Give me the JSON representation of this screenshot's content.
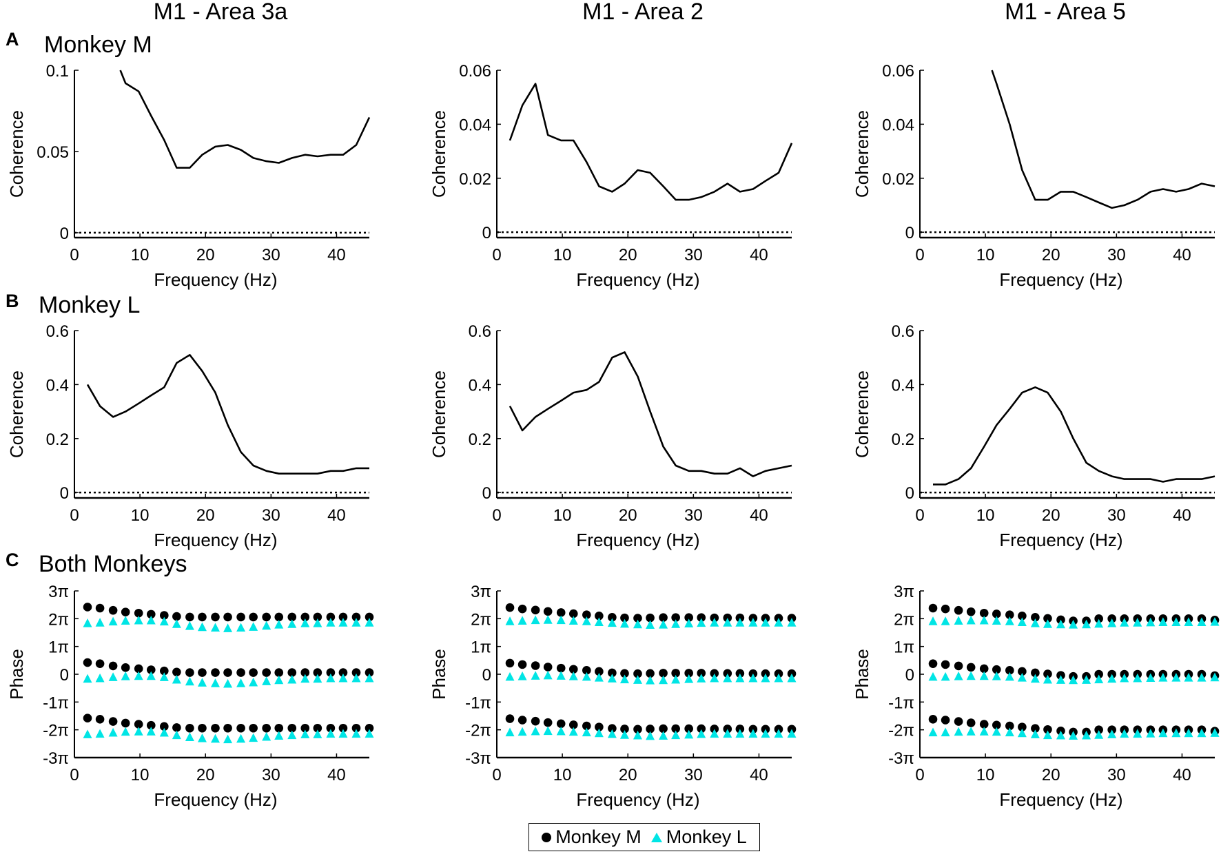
{
  "colors": {
    "line": "#000000",
    "monkey_m": "#000000",
    "monkey_l": "#00e5e5"
  },
  "column_titles": [
    "M1 - Area 3a",
    "M1 - Area 2",
    "M1 - Area 5"
  ],
  "panels": [
    {
      "letter": "A",
      "label": "Monkey M"
    },
    {
      "letter": "B",
      "label": "Monkey L"
    },
    {
      "letter": "C",
      "label": "Both Monkeys"
    }
  ],
  "legend": {
    "m": "Monkey M",
    "l": "Monkey L"
  },
  "chart_data": [
    {
      "id": "a1",
      "type": "line",
      "row": 0,
      "col": 0,
      "xlabel": "Frequency (Hz)",
      "ylabel": "Coherence",
      "xlim": [
        0,
        45
      ],
      "ylim": [
        -0.003,
        0.1
      ],
      "yticks": [
        0,
        0.05,
        0.1
      ],
      "ytick_labels": [
        "0",
        "0.05",
        "0.1"
      ],
      "xticks": [
        0,
        10,
        20,
        30,
        40
      ],
      "baseline": 0,
      "x": [
        7,
        7.8,
        9.8,
        11.7,
        13.7,
        15.6,
        17.6,
        19.5,
        21.5,
        23.4,
        25.4,
        27.3,
        29.3,
        31.2,
        33.2,
        35.2,
        37.1,
        39.1,
        41,
        43,
        45
      ],
      "y": [
        0.1,
        0.092,
        0.087,
        0.072,
        0.057,
        0.04,
        0.04,
        0.048,
        0.053,
        0.054,
        0.051,
        0.046,
        0.044,
        0.043,
        0.046,
        0.048,
        0.047,
        0.048,
        0.048,
        0.054,
        0.071
      ]
    },
    {
      "id": "a2",
      "type": "line",
      "row": 0,
      "col": 1,
      "xlabel": "Frequency (Hz)",
      "ylabel": "Coherence",
      "xlim": [
        0,
        45
      ],
      "ylim": [
        -0.002,
        0.06
      ],
      "yticks": [
        0,
        0.02,
        0.04,
        0.06
      ],
      "ytick_labels": [
        "0",
        "0.02",
        "0.04",
        "0.06"
      ],
      "xticks": [
        0,
        10,
        20,
        30,
        40
      ],
      "baseline": 0,
      "x": [
        2,
        3.9,
        5.9,
        7.8,
        9.8,
        11.7,
        13.7,
        15.6,
        17.6,
        19.5,
        21.5,
        23.4,
        25.4,
        27.3,
        29.3,
        31.2,
        33.2,
        35.2,
        37.1,
        39.1,
        41,
        43,
        45
      ],
      "y": [
        0.034,
        0.047,
        0.055,
        0.036,
        0.034,
        0.034,
        0.026,
        0.017,
        0.015,
        0.018,
        0.023,
        0.022,
        0.017,
        0.012,
        0.012,
        0.013,
        0.015,
        0.018,
        0.015,
        0.016,
        0.019,
        0.022,
        0.033
      ]
    },
    {
      "id": "a3",
      "type": "line",
      "row": 0,
      "col": 2,
      "xlabel": "Frequency (Hz)",
      "ylabel": "Coherence",
      "xlim": [
        0,
        45
      ],
      "ylim": [
        -0.002,
        0.06
      ],
      "yticks": [
        0,
        0.02,
        0.04,
        0.06
      ],
      "ytick_labels": [
        "0",
        "0.02",
        "0.04",
        "0.06"
      ],
      "xticks": [
        0,
        10,
        20,
        30,
        40
      ],
      "baseline": 0,
      "x": [
        11,
        11.7,
        13.7,
        15.6,
        17.6,
        19.5,
        21.5,
        23.4,
        25.4,
        27.3,
        29.3,
        31.2,
        33.2,
        35.2,
        37.1,
        39.1,
        41,
        43,
        45
      ],
      "y": [
        0.06,
        0.055,
        0.04,
        0.023,
        0.012,
        0.012,
        0.015,
        0.015,
        0.013,
        0.011,
        0.009,
        0.01,
        0.012,
        0.015,
        0.016,
        0.015,
        0.016,
        0.018,
        0.017
      ]
    },
    {
      "id": "b1",
      "type": "line",
      "row": 1,
      "col": 0,
      "xlabel": "Frequency (Hz)",
      "ylabel": "Coherence",
      "xlim": [
        0,
        45
      ],
      "ylim": [
        -0.02,
        0.6
      ],
      "yticks": [
        0,
        0.2,
        0.4,
        0.6
      ],
      "ytick_labels": [
        "0",
        "0.2",
        "0.4",
        "0.6"
      ],
      "xticks": [
        0,
        10,
        20,
        30,
        40
      ],
      "baseline": 0,
      "x": [
        2,
        3.9,
        5.9,
        7.8,
        9.8,
        11.7,
        13.7,
        15.6,
        17.6,
        19.5,
        21.5,
        23.4,
        25.4,
        27.3,
        29.3,
        31.2,
        33.2,
        35.2,
        37.1,
        39.1,
        41,
        43,
        45
      ],
      "y": [
        0.4,
        0.32,
        0.28,
        0.3,
        0.33,
        0.36,
        0.39,
        0.48,
        0.51,
        0.45,
        0.37,
        0.25,
        0.15,
        0.1,
        0.08,
        0.07,
        0.07,
        0.07,
        0.07,
        0.08,
        0.08,
        0.09,
        0.09
      ]
    },
    {
      "id": "b2",
      "type": "line",
      "row": 1,
      "col": 1,
      "xlabel": "Frequency (Hz)",
      "ylabel": "Coherence",
      "xlim": [
        0,
        45
      ],
      "ylim": [
        -0.02,
        0.6
      ],
      "yticks": [
        0,
        0.2,
        0.4,
        0.6
      ],
      "ytick_labels": [
        "0",
        "0.2",
        "0.4",
        "0.6"
      ],
      "xticks": [
        0,
        10,
        20,
        30,
        40
      ],
      "baseline": 0,
      "x": [
        2,
        3.9,
        5.9,
        7.8,
        9.8,
        11.7,
        13.7,
        15.6,
        17.6,
        19.5,
        21.5,
        23.4,
        25.4,
        27.3,
        29.3,
        31.2,
        33.2,
        35.2,
        37.1,
        39.1,
        41,
        43,
        45
      ],
      "y": [
        0.32,
        0.23,
        0.28,
        0.31,
        0.34,
        0.37,
        0.38,
        0.41,
        0.5,
        0.52,
        0.43,
        0.3,
        0.17,
        0.1,
        0.08,
        0.08,
        0.07,
        0.07,
        0.09,
        0.06,
        0.08,
        0.09,
        0.1
      ]
    },
    {
      "id": "b3",
      "type": "line",
      "row": 1,
      "col": 2,
      "xlabel": "Frequency (Hz)",
      "ylabel": "Coherence",
      "xlim": [
        0,
        45
      ],
      "ylim": [
        -0.02,
        0.6
      ],
      "yticks": [
        0,
        0.2,
        0.4,
        0.6
      ],
      "ytick_labels": [
        "0",
        "0.2",
        "0.4",
        "0.6"
      ],
      "xticks": [
        0,
        10,
        20,
        30,
        40
      ],
      "baseline": 0,
      "x": [
        2,
        3.9,
        5.9,
        7.8,
        9.8,
        11.7,
        13.7,
        15.6,
        17.6,
        19.5,
        21.5,
        23.4,
        25.4,
        27.3,
        29.3,
        31.2,
        33.2,
        35.2,
        37.1,
        39.1,
        41,
        43,
        45
      ],
      "y": [
        0.03,
        0.03,
        0.05,
        0.09,
        0.17,
        0.25,
        0.31,
        0.37,
        0.39,
        0.37,
        0.3,
        0.2,
        0.11,
        0.08,
        0.06,
        0.05,
        0.05,
        0.05,
        0.04,
        0.05,
        0.05,
        0.05,
        0.06
      ]
    },
    {
      "id": "c1",
      "type": "scatter",
      "row": 2,
      "col": 0,
      "xlabel": "Frequency (Hz)",
      "ylabel": "Phase",
      "xlim": [
        0,
        45
      ],
      "ylim": [
        -3,
        3
      ],
      "yticks": [
        3,
        2,
        1,
        0,
        -1,
        -2,
        -3
      ],
      "ytick_labels": [
        "3π",
        "2π",
        "1π",
        "0",
        "-1π",
        "-2π",
        "-3π"
      ],
      "xticks": [
        0,
        10,
        20,
        30,
        40
      ],
      "x": [
        2,
        3.9,
        5.9,
        7.8,
        9.8,
        11.7,
        13.7,
        15.6,
        17.6,
        19.5,
        21.5,
        23.4,
        25.4,
        27.3,
        29.3,
        31.2,
        33.2,
        35.2,
        37.1,
        39.1,
        41,
        43,
        45
      ],
      "series": [
        {
          "name": "Monkey M",
          "marker": "circle",
          "wrap": [
            -2,
            0,
            2
          ],
          "values": [
            0.42,
            0.38,
            0.3,
            0.24,
            0.2,
            0.16,
            0.12,
            0.08,
            0.06,
            0.06,
            0.06,
            0.06,
            0.06,
            0.06,
            0.06,
            0.06,
            0.06,
            0.06,
            0.06,
            0.06,
            0.06,
            0.06,
            0.06
          ]
        },
        {
          "name": "Monkey L",
          "marker": "triangle",
          "wrap": [
            -2,
            0,
            2
          ],
          "values": [
            -0.17,
            -0.15,
            -0.11,
            -0.08,
            -0.07,
            -0.07,
            -0.11,
            -0.2,
            -0.27,
            -0.31,
            -0.33,
            -0.35,
            -0.33,
            -0.3,
            -0.26,
            -0.22,
            -0.2,
            -0.17,
            -0.17,
            -0.15,
            -0.15,
            -0.15,
            -0.15
          ]
        }
      ]
    },
    {
      "id": "c2",
      "type": "scatter",
      "row": 2,
      "col": 1,
      "xlabel": "Frequency (Hz)",
      "ylabel": "Phase",
      "xlim": [
        0,
        45
      ],
      "ylim": [
        -3,
        3
      ],
      "yticks": [
        3,
        2,
        1,
        0,
        -1,
        -2,
        -3
      ],
      "ytick_labels": [
        "3π",
        "2π",
        "1π",
        "0",
        "-1π",
        "-2π",
        "-3π"
      ],
      "xticks": [
        0,
        10,
        20,
        30,
        40
      ],
      "x": [
        2,
        3.9,
        5.9,
        7.8,
        9.8,
        11.7,
        13.7,
        15.6,
        17.6,
        19.5,
        21.5,
        23.4,
        25.4,
        27.3,
        29.3,
        31.2,
        33.2,
        35.2,
        37.1,
        39.1,
        41,
        43,
        45
      ],
      "series": [
        {
          "name": "Monkey M",
          "marker": "circle",
          "wrap": [
            -2,
            0,
            2
          ],
          "values": [
            0.4,
            0.35,
            0.31,
            0.26,
            0.22,
            0.18,
            0.14,
            0.1,
            0.05,
            0.03,
            0.02,
            0.03,
            0.04,
            0.04,
            0.04,
            0.04,
            0.03,
            0.03,
            0.03,
            0.02,
            0.02,
            0.02,
            0.02
          ]
        },
        {
          "name": "Monkey L",
          "marker": "triangle",
          "wrap": [
            -2,
            0,
            2
          ],
          "values": [
            -0.1,
            -0.08,
            -0.06,
            -0.05,
            -0.06,
            -0.08,
            -0.1,
            -0.13,
            -0.16,
            -0.19,
            -0.21,
            -0.23,
            -0.22,
            -0.2,
            -0.18,
            -0.16,
            -0.15,
            -0.15,
            -0.15,
            -0.15,
            -0.15,
            -0.15,
            -0.15
          ]
        }
      ]
    },
    {
      "id": "c3",
      "type": "scatter",
      "row": 2,
      "col": 2,
      "xlabel": "Frequency (Hz)",
      "ylabel": "Phase",
      "xlim": [
        0,
        45
      ],
      "ylim": [
        -3,
        3
      ],
      "yticks": [
        3,
        2,
        1,
        0,
        -1,
        -2,
        -3
      ],
      "ytick_labels": [
        "3π",
        "2π",
        "1π",
        "0",
        "-1π",
        "-2π",
        "-3π"
      ],
      "xticks": [
        0,
        10,
        20,
        30,
        40
      ],
      "x": [
        2,
        3.9,
        5.9,
        7.8,
        9.8,
        11.7,
        13.7,
        15.6,
        17.6,
        19.5,
        21.5,
        23.4,
        25.4,
        27.3,
        29.3,
        31.2,
        33.2,
        35.2,
        37.1,
        39.1,
        41,
        43,
        45
      ],
      "series": [
        {
          "name": "Monkey M",
          "marker": "circle",
          "wrap": [
            -2,
            0,
            2
          ],
          "values": [
            0.38,
            0.35,
            0.3,
            0.25,
            0.2,
            0.17,
            0.14,
            0.1,
            0.05,
            0.01,
            -0.04,
            -0.08,
            -0.08,
            0.0,
            0.0,
            0.0,
            0.0,
            0.0,
            0.0,
            0.0,
            0.0,
            0.0,
            -0.05
          ]
        },
        {
          "name": "Monkey L",
          "marker": "triangle",
          "wrap": [
            -2,
            0,
            2
          ],
          "values": [
            -0.1,
            -0.1,
            -0.08,
            -0.07,
            -0.07,
            -0.08,
            -0.1,
            -0.13,
            -0.17,
            -0.2,
            -0.21,
            -0.22,
            -0.21,
            -0.19,
            -0.17,
            -0.15,
            -0.15,
            -0.14,
            -0.13,
            -0.13,
            -0.13,
            -0.13,
            -0.12
          ]
        }
      ]
    }
  ]
}
